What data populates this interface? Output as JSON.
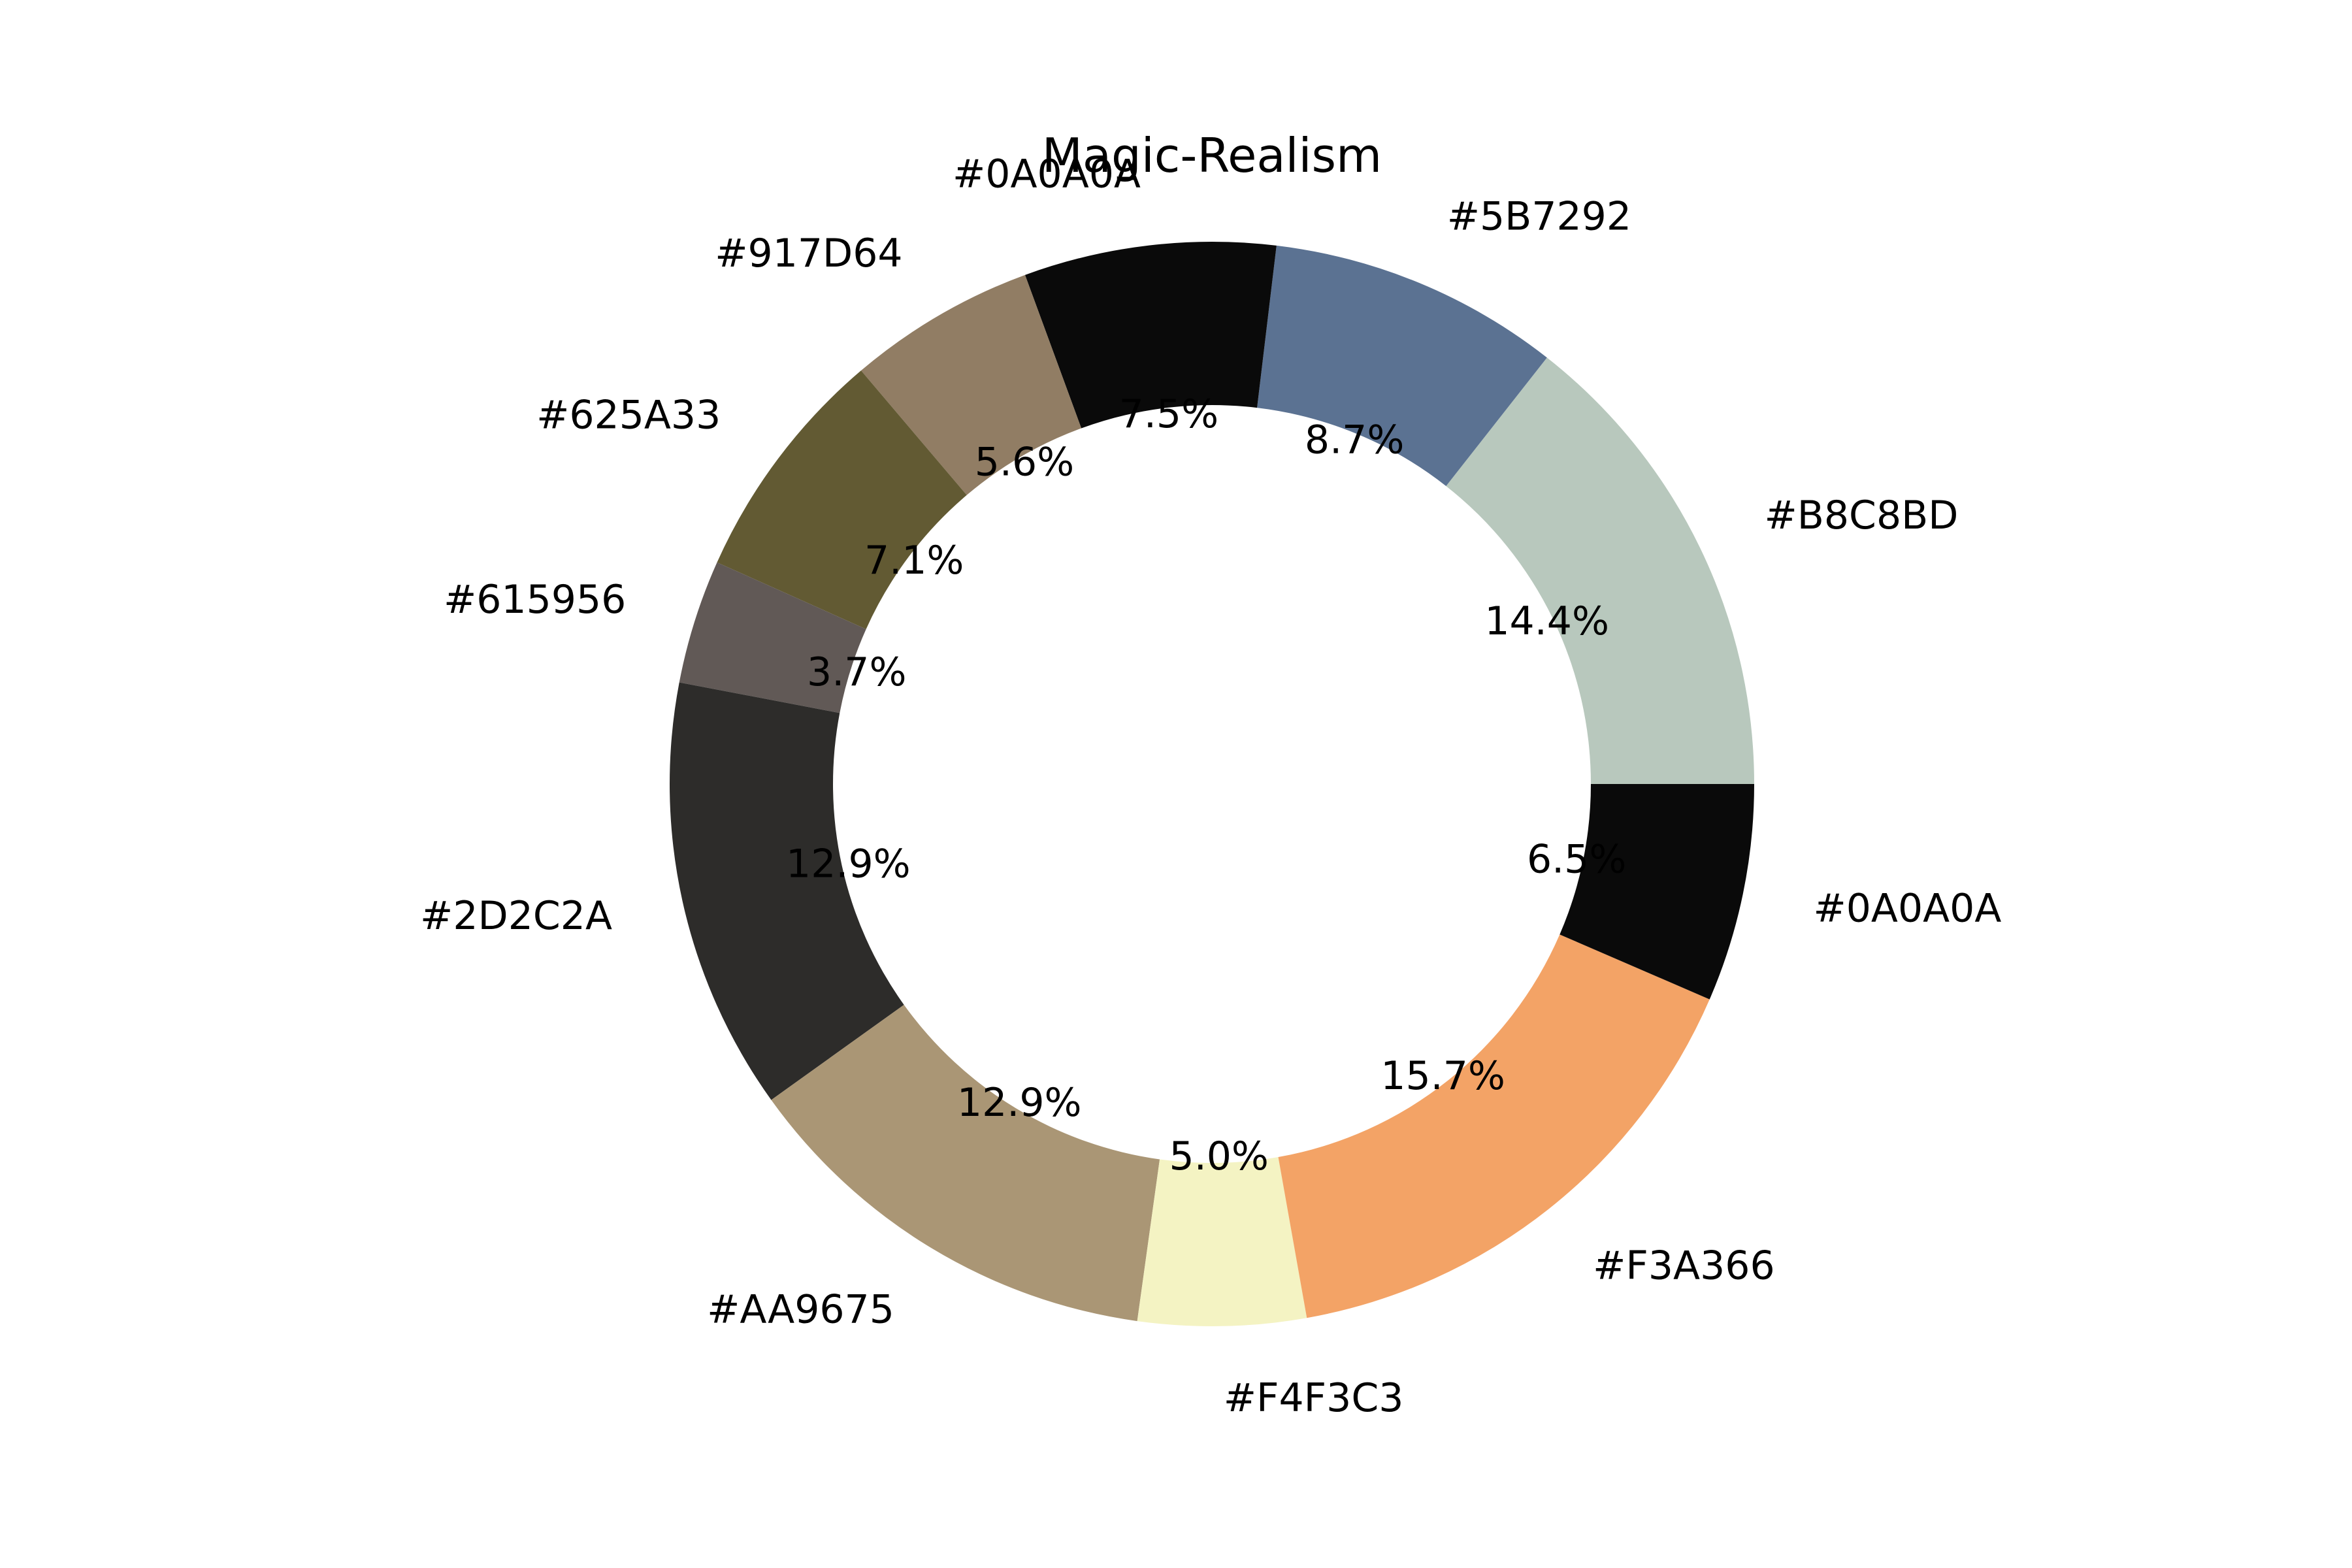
{
  "chart_data": {
    "type": "pie",
    "donut": true,
    "title": "Magic-Realism",
    "start_angle_deg": 0,
    "direction": "counterclockwise",
    "slices": [
      {
        "label": "#B8C8BD",
        "percent": 14.4,
        "pct_label": "14.4%",
        "color": "#B8C8BD"
      },
      {
        "label": "#5B7292",
        "percent": 8.7,
        "pct_label": "8.7%",
        "color": "#5B7292"
      },
      {
        "label": "#0A0A0A",
        "percent": 7.5,
        "pct_label": "7.5%",
        "color": "#0A0A0A"
      },
      {
        "label": "#917D64",
        "percent": 5.6,
        "pct_label": "5.6%",
        "color": "#917D64"
      },
      {
        "label": "#625A33",
        "percent": 7.1,
        "pct_label": "7.1%",
        "color": "#625A33"
      },
      {
        "label": "#615956",
        "percent": 3.7,
        "pct_label": "3.7%",
        "color": "#615956"
      },
      {
        "label": "#2D2C2A",
        "percent": 12.9,
        "pct_label": "12.9%",
        "color": "#2D2C2A"
      },
      {
        "label": "#AA9675",
        "percent": 12.9,
        "pct_label": "12.9%",
        "color": "#AA9675"
      },
      {
        "label": "#F4F3C3",
        "percent": 5.0,
        "pct_label": "5.0%",
        "color": "#F4F3C3"
      },
      {
        "label": "#F3A366",
        "percent": 15.7,
        "pct_label": "15.7%",
        "color": "#F3A366"
      },
      {
        "label": "#0A0A0A",
        "percent": 6.5,
        "pct_label": "6.5%",
        "color": "#0A0A0A"
      }
    ]
  }
}
